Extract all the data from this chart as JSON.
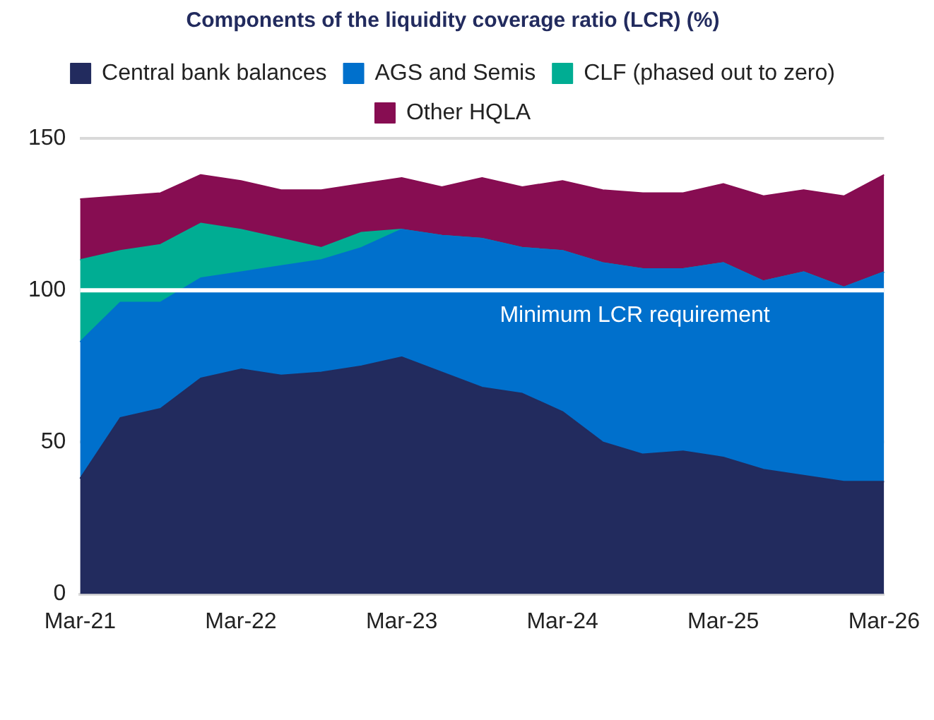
{
  "chart_data": {
    "type": "area",
    "stacked": true,
    "title": "Components of the liquidity coverage ratio (LCR) (%)",
    "categories": [
      "Mar-21",
      null,
      null,
      null,
      "Mar-22",
      null,
      null,
      null,
      "Mar-23",
      null,
      null,
      null,
      "Mar-24",
      null,
      null,
      null,
      "Mar-25",
      null,
      null,
      null,
      "Mar-26"
    ],
    "series": [
      {
        "name": "Central bank balances",
        "color": "#222b5e",
        "values": [
          38,
          58,
          61,
          71,
          74,
          72,
          73,
          75,
          78,
          73,
          68,
          66,
          60,
          50,
          46,
          47,
          45,
          41,
          39,
          37,
          37
        ]
      },
      {
        "name": "AGS and Semis",
        "color": "#0070cc",
        "values": [
          45,
          38,
          35,
          33,
          32,
          36,
          37,
          39,
          42,
          45,
          49,
          48,
          53,
          59,
          61,
          60,
          64,
          62,
          67,
          64,
          69
        ]
      },
      {
        "name": "CLF (phased out to zero)",
        "color": "#00ad93",
        "values": [
          27,
          17,
          19,
          18,
          14,
          9,
          4,
          5,
          0,
          0,
          0,
          0,
          0,
          0,
          0,
          0,
          0,
          0,
          0,
          0,
          0
        ]
      },
      {
        "name": "Other HQLA",
        "color": "#870d52",
        "values": [
          20,
          18,
          17,
          16,
          16,
          16,
          19,
          16,
          17,
          16,
          20,
          20,
          23,
          24,
          25,
          25,
          26,
          28,
          27,
          30,
          32
        ]
      }
    ],
    "ylim": [
      0,
      150
    ],
    "yticks": [
      0,
      50,
      100,
      150
    ],
    "grid": "y",
    "legend": "top",
    "ref_lines": [
      {
        "axis": "y",
        "value": 100,
        "label": "Minimum LCR requirement",
        "color": "#ffffff"
      }
    ]
  }
}
